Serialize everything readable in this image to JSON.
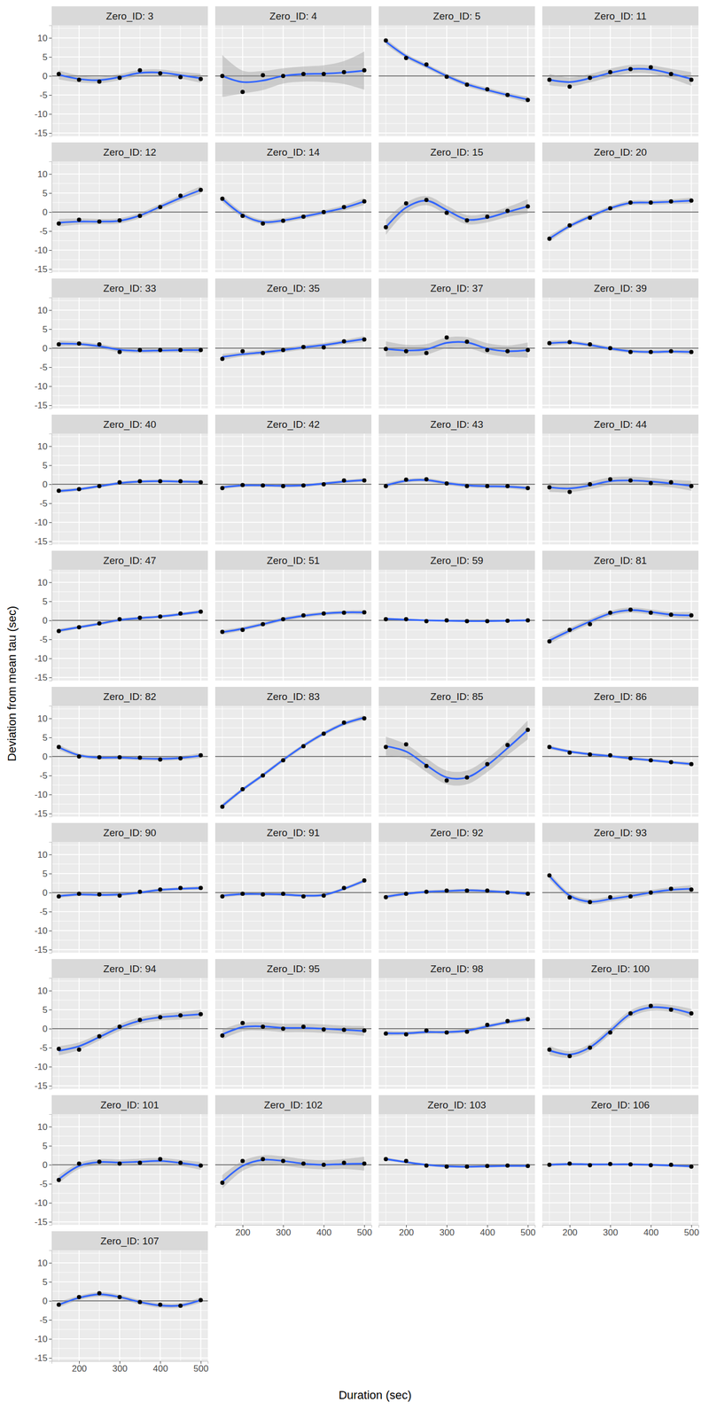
{
  "chart_data": {
    "type": "line",
    "x_label": "Duration (sec)",
    "y_label": "Deviation from mean tau (sec)",
    "x": [
      150,
      200,
      250,
      300,
      350,
      400,
      450,
      500
    ],
    "xlim": [
      132.5,
      517.5
    ],
    "ylim": [
      -15.8,
      13.3
    ],
    "xticks": [
      200,
      300,
      400,
      500
    ],
    "yticks": [
      -15,
      -10,
      -5,
      0,
      5,
      10
    ],
    "x_minor": [
      150,
      250,
      350,
      450
    ],
    "y_minor": [
      -12.5,
      -7.5,
      -2.5,
      2.5,
      7.5,
      12.5
    ],
    "hline": 0,
    "grid": true,
    "panels": [
      {
        "title": "Zero_ID: 3",
        "values": [
          0.5,
          -1,
          -1.5,
          -0.5,
          1.5,
          0.7,
          -0.3,
          -0.8
        ],
        "fit": [
          0.3,
          -0.8,
          -1.1,
          -0.3,
          0.8,
          0.9,
          0.2,
          -0.6
        ],
        "se": [
          1.2,
          0.9,
          0.8,
          0.8,
          0.8,
          0.8,
          0.9,
          1.2
        ]
      },
      {
        "title": "Zero_ID: 4",
        "values": [
          0,
          -4.2,
          0.2,
          0,
          0.5,
          0.5,
          1,
          1.5
        ],
        "fit": [
          0,
          -1.6,
          -1.2,
          0,
          0.5,
          0.6,
          0.9,
          1.4
        ],
        "se": [
          5.5,
          3,
          2.5,
          2,
          2,
          2.2,
          3,
          5
        ]
      },
      {
        "title": "Zero_ID: 5",
        "values": [
          9.3,
          4.7,
          3,
          -0.2,
          -2.3,
          -3.5,
          -5,
          -6.3
        ],
        "fit": [
          9,
          5.2,
          2.6,
          0,
          -2.2,
          -3.7,
          -5,
          -6.2
        ],
        "se": [
          0.8,
          0.6,
          0.6,
          0.6,
          0.6,
          0.6,
          0.6,
          0.8
        ]
      },
      {
        "title": "Zero_ID: 11",
        "values": [
          -1,
          -2.8,
          -0.5,
          1,
          1.8,
          2.3,
          0.5,
          -1
        ],
        "fit": [
          -1,
          -1.6,
          -0.6,
          0.8,
          1.8,
          1.7,
          0.6,
          -0.8
        ],
        "se": [
          1.5,
          1.2,
          1.1,
          1.1,
          1.1,
          1.1,
          1.3,
          1.8
        ]
      },
      {
        "title": "Zero_ID: 12",
        "values": [
          -3,
          -2,
          -2.5,
          -2.2,
          -1,
          1.3,
          4.3,
          5.8
        ],
        "fit": [
          -2.8,
          -2.5,
          -2.5,
          -2.3,
          -0.9,
          1.4,
          3.7,
          5.8
        ],
        "se": [
          1,
          0.8,
          0.7,
          0.7,
          0.7,
          0.7,
          0.8,
          1
        ]
      },
      {
        "title": "Zero_ID: 14",
        "values": [
          3.5,
          -1,
          -3,
          -2.3,
          -1.2,
          0,
          1.3,
          2.8
        ],
        "fit": [
          3.5,
          -0.7,
          -2.6,
          -2.2,
          -1.2,
          -0.1,
          1.1,
          2.8
        ],
        "se": [
          0.9,
          0.7,
          0.6,
          0.6,
          0.6,
          0.6,
          0.7,
          0.9
        ]
      },
      {
        "title": "Zero_ID: 15",
        "values": [
          -4,
          2.3,
          3.2,
          -0.2,
          -2.2,
          -1.2,
          0.3,
          1.5
        ],
        "fit": [
          -4,
          1.2,
          3,
          0.5,
          -2,
          -1.5,
          0,
          1.5
        ],
        "se": [
          2,
          1.3,
          1.2,
          1.2,
          1.2,
          1.2,
          1.3,
          1.9
        ]
      },
      {
        "title": "Zero_ID: 20",
        "values": [
          -7,
          -3.5,
          -1.5,
          1,
          2.5,
          2.5,
          2.8,
          3
        ],
        "fit": [
          -7,
          -3.7,
          -1.2,
          1,
          2.4,
          2.5,
          2.7,
          3
        ],
        "se": [
          0.8,
          0.6,
          0.6,
          0.6,
          0.6,
          0.6,
          0.6,
          0.8
        ]
      },
      {
        "title": "Zero_ID: 33",
        "values": [
          1,
          1.2,
          1,
          -1,
          -0.5,
          -0.5,
          -0.5,
          -0.5
        ],
        "fit": [
          1.2,
          1.1,
          0.5,
          -0.4,
          -0.7,
          -0.6,
          -0.5,
          -0.5
        ],
        "se": [
          0.8,
          0.6,
          0.6,
          0.6,
          0.6,
          0.6,
          0.6,
          0.8
        ]
      },
      {
        "title": "Zero_ID: 35",
        "values": [
          -2.8,
          -0.8,
          -1.3,
          -0.5,
          0.3,
          0.2,
          1.8,
          2.3
        ],
        "fit": [
          -2.3,
          -1.6,
          -1.1,
          -0.5,
          0.2,
          0.8,
          1.6,
          2.4
        ],
        "se": [
          0.8,
          0.6,
          0.6,
          0.6,
          0.6,
          0.6,
          0.6,
          0.8
        ]
      },
      {
        "title": "Zero_ID: 37",
        "values": [
          -0.2,
          -0.8,
          -1.3,
          2.8,
          1.7,
          -0.5,
          -0.8,
          -0.5
        ],
        "fit": [
          -0.2,
          -0.6,
          -0.3,
          1.4,
          1.5,
          -0.1,
          -0.8,
          -0.5
        ],
        "se": [
          2,
          1.5,
          1.4,
          1.4,
          1.4,
          1.4,
          1.5,
          2
        ]
      },
      {
        "title": "Zero_ID: 39",
        "values": [
          1.3,
          1.6,
          1,
          0,
          -1,
          -1,
          -0.8,
          -1
        ],
        "fit": [
          1.3,
          1.5,
          0.8,
          -0.1,
          -0.8,
          -1,
          -0.9,
          -1
        ],
        "se": [
          0.7,
          0.5,
          0.5,
          0.5,
          0.5,
          0.5,
          0.5,
          0.7
        ]
      },
      {
        "title": "Zero_ID: 40",
        "values": [
          -1.7,
          -1.3,
          -0.5,
          0.5,
          0.8,
          0.8,
          0.8,
          0.5
        ],
        "fit": [
          -1.8,
          -1.3,
          -0.5,
          0.3,
          0.7,
          0.8,
          0.7,
          0.6
        ],
        "se": [
          0.5,
          0.4,
          0.4,
          0.4,
          0.4,
          0.4,
          0.4,
          0.5
        ]
      },
      {
        "title": "Zero_ID: 42",
        "values": [
          -1,
          -0.2,
          -0.3,
          -0.5,
          -0.3,
          0,
          1,
          1
        ],
        "fit": [
          -0.8,
          -0.3,
          -0.3,
          -0.4,
          -0.3,
          0.2,
          0.7,
          1.1
        ],
        "se": [
          0.5,
          0.4,
          0.4,
          0.4,
          0.4,
          0.4,
          0.4,
          0.5
        ]
      },
      {
        "title": "Zero_ID: 43",
        "values": [
          -0.5,
          1.2,
          1.3,
          0.2,
          -0.5,
          -0.5,
          -0.5,
          -1
        ],
        "fit": [
          -0.3,
          0.9,
          1.1,
          0.3,
          -0.3,
          -0.5,
          -0.6,
          -1
        ],
        "se": [
          0.6,
          0.5,
          0.5,
          0.5,
          0.5,
          0.5,
          0.5,
          0.6
        ]
      },
      {
        "title": "Zero_ID: 44",
        "values": [
          -0.8,
          -2,
          0,
          1.3,
          1,
          0.3,
          0.5,
          -0.5
        ],
        "fit": [
          -0.8,
          -1.1,
          -0.3,
          0.8,
          1,
          0.7,
          0.2,
          -0.4
        ],
        "se": [
          1.2,
          1,
          1,
          1,
          1,
          1,
          1,
          1.3
        ]
      },
      {
        "title": "Zero_ID: 47",
        "values": [
          -2.8,
          -1.8,
          -0.8,
          0.3,
          0.7,
          1,
          1.8,
          2.3
        ],
        "fit": [
          -2.7,
          -1.8,
          -0.9,
          0.1,
          0.6,
          1,
          1.6,
          2.3
        ],
        "se": [
          0.5,
          0.4,
          0.4,
          0.4,
          0.4,
          0.4,
          0.4,
          0.5
        ]
      },
      {
        "title": "Zero_ID: 51",
        "values": [
          -3,
          -2.5,
          -1,
          0.3,
          1.3,
          1.8,
          2,
          2.1
        ],
        "fit": [
          -3.1,
          -2.2,
          -1,
          0.3,
          1.2,
          1.8,
          2.1,
          2.1
        ],
        "se": [
          0.6,
          0.5,
          0.5,
          0.5,
          0.5,
          0.5,
          0.5,
          0.6
        ]
      },
      {
        "title": "Zero_ID: 59",
        "values": [
          0.3,
          0.3,
          -0.2,
          0,
          -0.2,
          -0.2,
          -0.1,
          0
        ],
        "fit": [
          0.4,
          0.2,
          0,
          -0.1,
          -0.2,
          -0.2,
          -0.1,
          0
        ],
        "se": [
          0.3,
          0.2,
          0.2,
          0.2,
          0.2,
          0.2,
          0.2,
          0.3
        ]
      },
      {
        "title": "Zero_ID: 81",
        "values": [
          -5.5,
          -2.5,
          -1,
          2,
          2.8,
          2,
          1.5,
          1.3
        ],
        "fit": [
          -5.3,
          -2.7,
          -0.3,
          1.8,
          2.7,
          2.2,
          1.5,
          1.3
        ],
        "se": [
          0.9,
          0.7,
          0.7,
          0.7,
          0.7,
          0.7,
          0.7,
          0.9
        ]
      },
      {
        "title": "Zero_ID: 82",
        "values": [
          2.5,
          0,
          -0.2,
          -0.2,
          -0.3,
          -0.8,
          -0.5,
          0.3
        ],
        "fit": [
          2.4,
          0.3,
          -0.3,
          -0.3,
          -0.5,
          -0.6,
          -0.4,
          0.2
        ],
        "se": [
          0.7,
          0.5,
          0.5,
          0.5,
          0.5,
          0.5,
          0.5,
          0.7
        ]
      },
      {
        "title": "Zero_ID: 83",
        "values": [
          -13.2,
          -8.6,
          -5,
          -1,
          2.7,
          6,
          8.9,
          10
        ],
        "fit": [
          -13,
          -8.7,
          -4.9,
          -0.9,
          2.8,
          6,
          8.6,
          10.2
        ],
        "se": [
          0.6,
          0.5,
          0.5,
          0.5,
          0.5,
          0.5,
          0.5,
          0.6
        ]
      },
      {
        "title": "Zero_ID: 85",
        "values": [
          2.5,
          3.2,
          -2.5,
          -6.3,
          -5.5,
          -2,
          3,
          7
        ],
        "fit": [
          2.7,
          1.3,
          -2.3,
          -5.5,
          -5.5,
          -2.3,
          2.2,
          7
        ],
        "se": [
          2.5,
          1.9,
          1.8,
          1.8,
          1.8,
          1.8,
          1.9,
          2.5
        ]
      },
      {
        "title": "Zero_ID: 86",
        "values": [
          2.5,
          1,
          0.5,
          0.3,
          -0.5,
          -1,
          -1.5,
          -2
        ],
        "fit": [
          2.4,
          1.3,
          0.6,
          0.1,
          -0.5,
          -1,
          -1.5,
          -2
        ],
        "se": [
          0.5,
          0.4,
          0.4,
          0.4,
          0.4,
          0.4,
          0.4,
          0.5
        ]
      },
      {
        "title": "Zero_ID: 90",
        "values": [
          -1,
          -0.3,
          -0.5,
          -0.8,
          0.2,
          0.8,
          1.2,
          1.2
        ],
        "fit": [
          -0.9,
          -0.5,
          -0.6,
          -0.5,
          0,
          0.7,
          1,
          1.2
        ],
        "se": [
          0.5,
          0.4,
          0.4,
          0.4,
          0.4,
          0.4,
          0.4,
          0.5
        ]
      },
      {
        "title": "Zero_ID: 91",
        "values": [
          -1,
          -0.3,
          -0.5,
          -0.3,
          -1,
          -0.8,
          1.2,
          3.2
        ],
        "fit": [
          -0.8,
          -0.4,
          -0.4,
          -0.5,
          -0.8,
          -0.6,
          1,
          3.1
        ],
        "se": [
          0.5,
          0.4,
          0.4,
          0.4,
          0.4,
          0.4,
          0.4,
          0.5
        ]
      },
      {
        "title": "Zero_ID: 92",
        "values": [
          -1.2,
          -0.3,
          0.2,
          0.5,
          0.5,
          0.5,
          0,
          -0.3
        ],
        "fit": [
          -1.1,
          -0.3,
          0.2,
          0.4,
          0.6,
          0.4,
          0.1,
          -0.3
        ],
        "se": [
          0.5,
          0.4,
          0.4,
          0.4,
          0.4,
          0.4,
          0.4,
          0.5
        ]
      },
      {
        "title": "Zero_ID: 93",
        "values": [
          4.5,
          -1.3,
          -2.5,
          -1.2,
          -1,
          0,
          1,
          0.8
        ],
        "fit": [
          4.4,
          -0.8,
          -2.4,
          -1.7,
          -0.9,
          0,
          0.7,
          1
        ],
        "se": [
          0.9,
          0.7,
          0.7,
          0.7,
          0.7,
          0.7,
          0.7,
          0.9
        ]
      },
      {
        "title": "Zero_ID: 94",
        "values": [
          -5.3,
          -5.5,
          -2,
          0.5,
          2.3,
          3,
          3.5,
          3.8
        ],
        "fit": [
          -5.8,
          -4.6,
          -2.2,
          0.3,
          2.1,
          3,
          3.4,
          3.8
        ],
        "se": [
          1.2,
          1,
          0.9,
          0.9,
          0.9,
          0.9,
          1,
          1.2
        ]
      },
      {
        "title": "Zero_ID: 95",
        "values": [
          -1.8,
          1.5,
          0.5,
          0,
          0.5,
          -0.2,
          -0.3,
          -0.5
        ],
        "fit": [
          -1.5,
          0.4,
          0.6,
          0.2,
          0.2,
          0,
          -0.3,
          -0.6
        ],
        "se": [
          1.3,
          1.1,
          1.1,
          1.1,
          1.1,
          1.1,
          1.1,
          1.3
        ]
      },
      {
        "title": "Zero_ID: 98",
        "values": [
          -1.3,
          -1.5,
          -0.5,
          -1,
          -0.8,
          1,
          2,
          2.5
        ],
        "fit": [
          -1.2,
          -1.2,
          -0.9,
          -0.9,
          -0.5,
          0.6,
          1.7,
          2.5
        ],
        "se": [
          0.6,
          0.5,
          0.5,
          0.5,
          0.5,
          0.5,
          0.5,
          0.6
        ]
      },
      {
        "title": "Zero_ID: 100",
        "values": [
          -5.5,
          -7.2,
          -5,
          -1,
          4,
          6,
          5,
          4
        ],
        "fit": [
          -5.7,
          -6.8,
          -4.9,
          -0.6,
          3.9,
          5.6,
          5.3,
          4
        ],
        "se": [
          1.2,
          0.9,
          0.9,
          0.9,
          0.9,
          0.9,
          0.9,
          1.2
        ]
      },
      {
        "title": "Zero_ID: 101",
        "values": [
          -4,
          0.3,
          0.8,
          0.3,
          0.5,
          1.5,
          0.5,
          -0.2
        ],
        "fit": [
          -3.8,
          -0.3,
          0.7,
          0.6,
          0.8,
          1,
          0.5,
          -0.3
        ],
        "se": [
          1,
          0.8,
          0.8,
          0.8,
          0.8,
          0.8,
          0.8,
          1
        ]
      },
      {
        "title": "Zero_ID: 102",
        "values": [
          -4.7,
          1,
          1.5,
          1,
          0.3,
          0,
          0.5,
          0.3
        ],
        "fit": [
          -4.5,
          -0.3,
          1.3,
          1,
          0.3,
          0,
          0.2,
          0.3
        ],
        "se": [
          1.8,
          1.3,
          1.2,
          1.2,
          1.2,
          1.2,
          1.3,
          1.8
        ]
      },
      {
        "title": "Zero_ID: 103",
        "values": [
          1.5,
          1,
          -0.2,
          -0.5,
          -0.5,
          -0.3,
          -0.2,
          -0.3
        ],
        "fit": [
          1.5,
          0.7,
          0,
          -0.4,
          -0.5,
          -0.4,
          -0.3,
          -0.3
        ],
        "se": [
          0.4,
          0.3,
          0.3,
          0.3,
          0.3,
          0.3,
          0.3,
          0.4
        ]
      },
      {
        "title": "Zero_ID: 106",
        "values": [
          0,
          0.3,
          -0.1,
          0.2,
          0.1,
          -0.1,
          0,
          -0.5
        ],
        "fit": [
          0,
          0.2,
          0.1,
          0.1,
          0.1,
          0,
          -0.2,
          -0.4
        ],
        "se": [
          0.4,
          0.3,
          0.3,
          0.3,
          0.3,
          0.3,
          0.3,
          0.4
        ]
      },
      {
        "title": "Zero_ID: 107",
        "values": [
          -1,
          1,
          2,
          1,
          -0.3,
          -1,
          -1.3,
          0.2
        ],
        "fit": [
          -1,
          0.8,
          1.7,
          1,
          -0.3,
          -1.2,
          -1.2,
          0.2
        ],
        "se": [
          0.7,
          0.6,
          0.6,
          0.6,
          0.6,
          0.6,
          0.6,
          0.7
        ]
      }
    ]
  }
}
